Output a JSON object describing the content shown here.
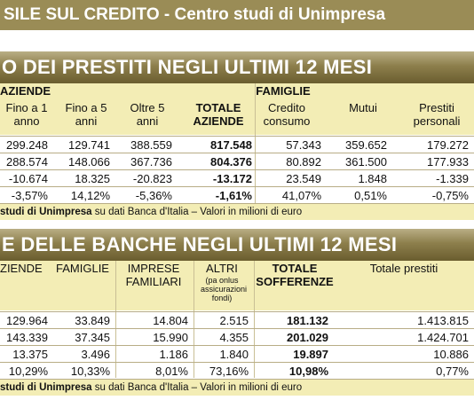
{
  "header": {
    "title": "SILE SUL CREDITO - Centro studi di Unimpresa",
    "colors": {
      "bar": "#9a8c56",
      "band": "#8d7f4c",
      "header_bg": "#f3edb5"
    }
  },
  "section1": {
    "title": "O DEI PRESTITI NEGLI ULTIMI 12 MESI",
    "group_aziende": "AZIENDE",
    "group_famiglie": "FAMIGLIE",
    "columns": [
      {
        "l1": "Fino a 1",
        "l2": "anno"
      },
      {
        "l1": "Fino a 5",
        "l2": "anni"
      },
      {
        "l1": "Oltre 5",
        "l2": "anni"
      },
      {
        "l1": "TOTALE",
        "l2": "AZIENDE"
      },
      {
        "l1": "Credito",
        "l2": "consumo"
      },
      {
        "l1": "Mutui",
        "l2": ""
      },
      {
        "l1": "Prestiti",
        "l2": "personali"
      }
    ],
    "rows": [
      [
        "299.248",
        "129.741",
        "388.559",
        "817.548",
        "57.343",
        "359.652",
        "179.272"
      ],
      [
        "288.574",
        "148.066",
        "367.736",
        "804.376",
        "80.892",
        "361.500",
        "177.933"
      ],
      [
        "-10.674",
        "18.325",
        "-20.823",
        "-13.172",
        "23.549",
        "1.848",
        "-1.339"
      ],
      [
        "-3,57%",
        "14,12%",
        "-5,36%",
        "-1,61%",
        "41,07%",
        "0,51%",
        "-0,75%"
      ]
    ],
    "source_bold": "studi di Unimpresa",
    "source_rest": " su dati Banca d'Italia – Valori in milioni di euro"
  },
  "section2": {
    "title": "E DELLE BANCHE NEGLI ULTIMI 12 MESI",
    "columns": [
      {
        "l1": "ZIENDE",
        "l2": ""
      },
      {
        "l1": "FAMIGLIE",
        "l2": ""
      },
      {
        "l1": "IMPRESE",
        "l2": "FAMILIARI"
      },
      {
        "l1": "ALTRI",
        "l2": "(pa onlus assicurazioni fondi)"
      },
      {
        "l1": "TOTALE",
        "l2": "SOFFERENZE"
      },
      {
        "l1": "Totale prestiti",
        "l2": ""
      }
    ],
    "rows": [
      [
        "129.964",
        "33.849",
        "14.804",
        "2.515",
        "181.132",
        "1.413.815"
      ],
      [
        "143.339",
        "37.345",
        "15.990",
        "4.355",
        "201.029",
        "1.424.701"
      ],
      [
        "13.375",
        "3.496",
        "1.186",
        "1.840",
        "19.897",
        "10.886"
      ],
      [
        "10,29%",
        "10,33%",
        "8,01%",
        "73,16%",
        "10,98%",
        "0,77%"
      ]
    ],
    "source_bold": "studi di Unimpresa",
    "source_rest": " su dati Banca d'Italia – Valori in milioni di euro"
  }
}
